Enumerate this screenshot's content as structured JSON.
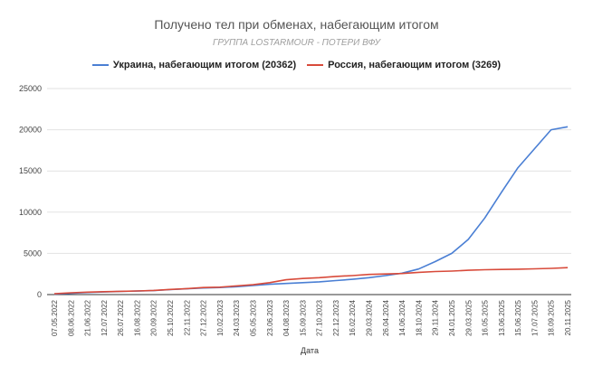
{
  "chart_data": {
    "type": "line",
    "title": "Получено тел при обменах, набегающим итогом",
    "subtitle": "ГРУППА LOSTARMOUR - ПОТЕРИ ВФУ",
    "xlabel": "Дата",
    "ylabel": "",
    "ylim": [
      0,
      25000
    ],
    "yticks": [
      0,
      5000,
      10000,
      15000,
      20000,
      25000
    ],
    "grid": true,
    "legend_position": "top",
    "categories": [
      "07.05.2022",
      "08.06.2022",
      "21.06.2022",
      "12.07.2022",
      "26.07.2022",
      "16.08.2022",
      "20.09.2022",
      "25.10.2022",
      "22.11.2022",
      "27.12.2022",
      "10.02.2023",
      "24.03.2023",
      "05.05.2023",
      "23.06.2023",
      "04.08.2023",
      "15.09.2023",
      "27.10.2023",
      "22.12.2023",
      "16.02.2024",
      "29.03.2024",
      "26.04.2024",
      "14.06.2024",
      "18.10.2024",
      "29.11.2024",
      "24.01.2025",
      "29.03.2025",
      "16.05.2025",
      "13.06.2025",
      "15.06.2025",
      "17.07.2025",
      "18.09.2025",
      "20.11.2025"
    ],
    "series": [
      {
        "name": "Украина, набегающим итогом (20362)",
        "color": "#4a7fd4",
        "values": [
          50,
          150,
          250,
          320,
          380,
          430,
          480,
          600,
          700,
          800,
          850,
          950,
          1100,
          1250,
          1350,
          1450,
          1550,
          1700,
          1850,
          2050,
          2300,
          2600,
          3100,
          4000,
          5000,
          6700,
          9300,
          12400,
          15400,
          17700,
          20000,
          20362
        ]
      },
      {
        "name": "Россия, набегающим итогом (3269)",
        "color": "#d84a3a",
        "values": [
          100,
          220,
          300,
          350,
          400,
          440,
          500,
          620,
          720,
          850,
          900,
          1050,
          1200,
          1450,
          1800,
          1950,
          2050,
          2200,
          2300,
          2450,
          2500,
          2550,
          2700,
          2800,
          2850,
          2950,
          3020,
          3050,
          3080,
          3120,
          3180,
          3269
        ]
      }
    ]
  }
}
